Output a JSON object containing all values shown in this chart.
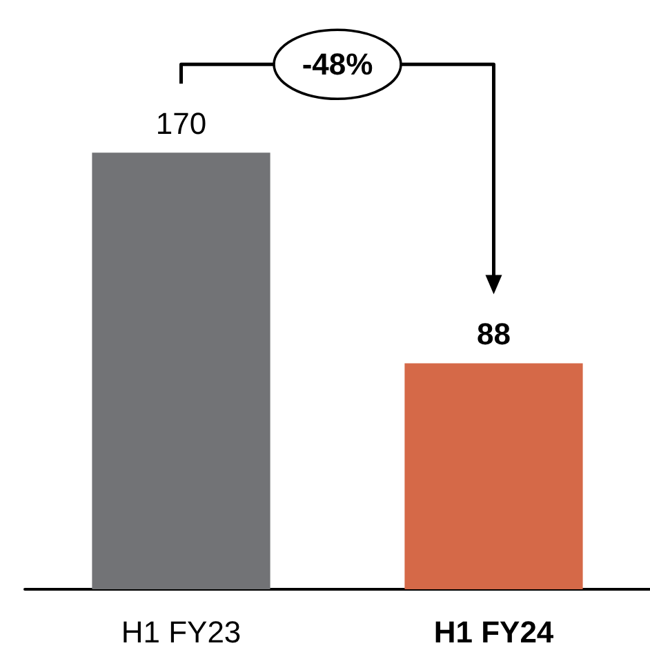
{
  "chart_data": {
    "type": "bar",
    "categories": [
      "H1 FY23",
      "H1 FY24"
    ],
    "values": [
      170,
      88
    ],
    "colors": [
      "#727376",
      "#d56948"
    ],
    "data_labels": true,
    "annotations": [
      "-48%"
    ]
  }
}
